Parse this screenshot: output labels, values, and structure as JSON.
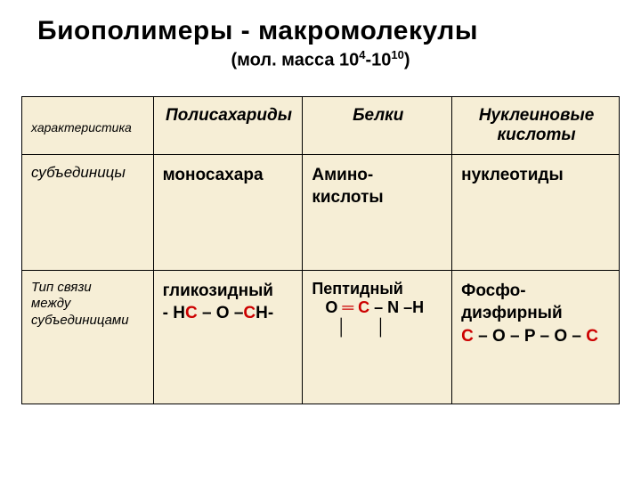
{
  "title": "Биополимеры  - макромолекулы",
  "subtitle_pre": "(мол. масса 10",
  "subtitle_sup1": "4",
  "subtitle_mid": "-10",
  "subtitle_sup2": "10",
  "subtitle_post": ")",
  "table": {
    "background": "#f6eed6",
    "border_color": "#000000",
    "headers": {
      "char": "характеристика",
      "poly": "Полисахариды",
      "prot": "Белки",
      "nucl_l1": "Нуклеиновые",
      "nucl_l2": "кислоты"
    },
    "row1": {
      "label": "субъединицы",
      "poly": "моносахара",
      "prot_l1": "Амино-",
      "prot_l2": "кислоты",
      "nucl": "нуклеотиды"
    },
    "row2": {
      "label_l1": "Тип связи",
      "label_l2": "между",
      "label_l3": "субъединицами",
      "poly_l1": "гликозидный",
      "poly_l2a": " - H",
      "poly_l2b": "С",
      "poly_l2c": " – O –",
      "poly_l2d": "С",
      "poly_l2e": "H-",
      "prot_l1": "Пептидный",
      "prot_l2a": "   O ",
      "prot_eq": "═",
      "prot_l2b": " ",
      "prot_c": "С",
      "prot_l2c": " – N –H",
      "prot_bars": "│ │",
      "nucl_l1": "Фосфо-",
      "nucl_l2": "диэфирный",
      "nucl_l3a": " ",
      "nucl_c1": "С",
      "nucl_l3b": " – O – P – O – ",
      "nucl_c2": "С"
    }
  }
}
